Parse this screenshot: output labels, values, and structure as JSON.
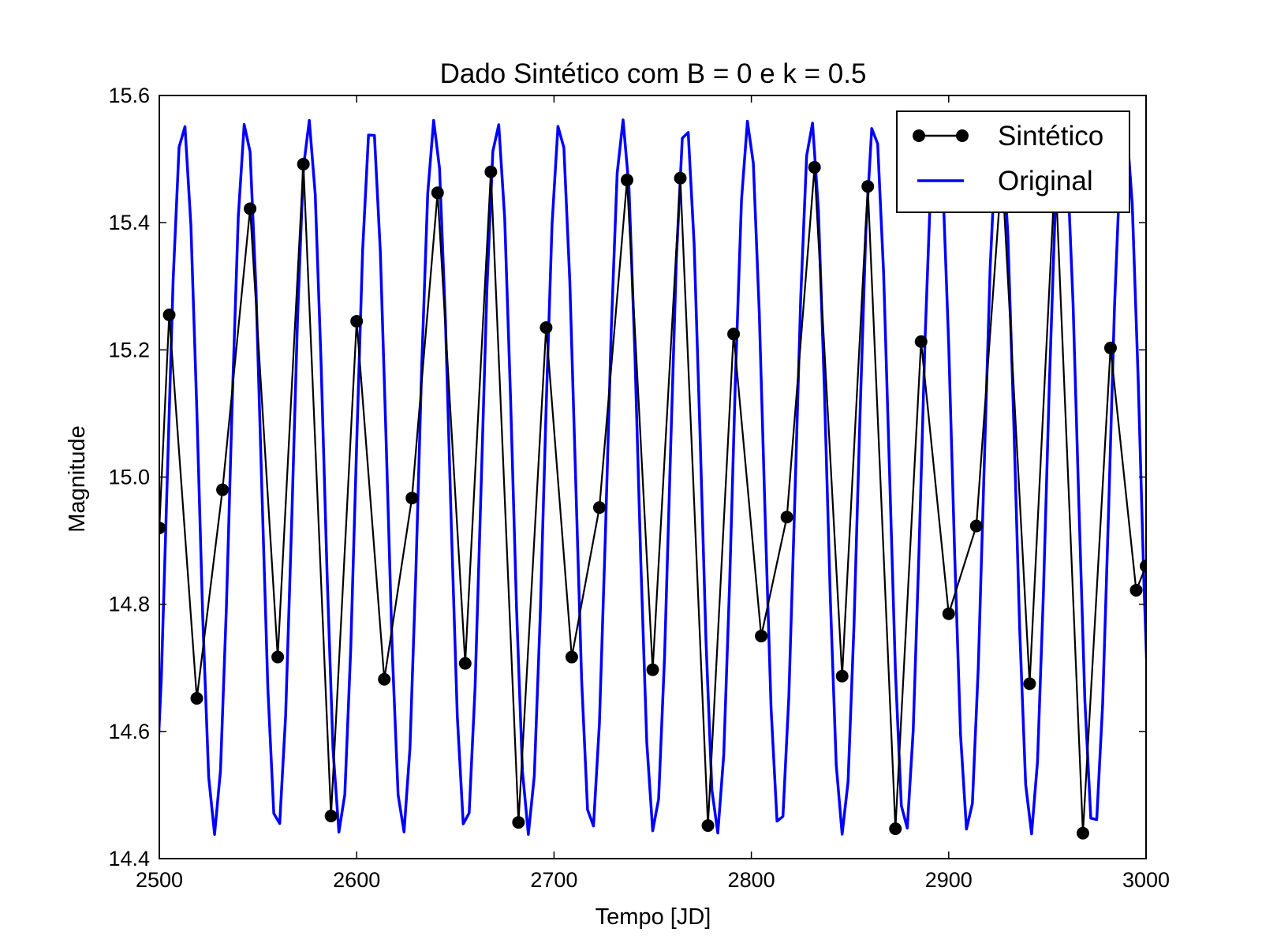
{
  "chart_data": {
    "type": "line",
    "title": "Dado Sintético com B = 0 e k = 0.5",
    "xlabel": "Tempo [JD]",
    "ylabel": "Magnitude",
    "xlim": [
      2500,
      3000
    ],
    "ylim": [
      14.4,
      15.6
    ],
    "xticks": [
      "2500",
      "2600",
      "2700",
      "2800",
      "2900",
      "3000"
    ],
    "yticks": [
      "14.4",
      "14.6",
      "14.8",
      "15.0",
      "15.2",
      "15.4",
      "15.6"
    ],
    "grid": false,
    "legend_position": "top-right",
    "series": [
      {
        "name": "Sintético",
        "style": "line-with-markers",
        "color": "#000000",
        "x": [
          2500,
          2505,
          2519,
          2532,
          2546,
          2560,
          2573,
          2587,
          2600,
          2614,
          2628,
          2641,
          2655,
          2668,
          2682,
          2696,
          2709,
          2723,
          2737,
          2750,
          2764,
          2778,
          2791,
          2805,
          2818,
          2832,
          2846,
          2859,
          2873,
          2886,
          2900,
          2914,
          2927,
          2941,
          2954,
          2968,
          2982,
          2995,
          3000
        ],
        "y": [
          14.92,
          15.255,
          14.652,
          14.98,
          15.422,
          14.717,
          15.492,
          14.467,
          15.245,
          14.682,
          14.967,
          15.447,
          14.707,
          15.48,
          14.457,
          15.235,
          14.717,
          14.952,
          15.467,
          14.697,
          15.47,
          14.452,
          15.225,
          14.75,
          14.937,
          15.487,
          14.687,
          15.457,
          14.447,
          15.213,
          14.785,
          14.923,
          15.485,
          14.675,
          15.485,
          14.44,
          15.203,
          14.822,
          14.86
        ]
      },
      {
        "name": "Original",
        "style": "line",
        "color": "#0000ff",
        "period": 31.83,
        "phase_of_first_peak": 2512,
        "mean": 15.0,
        "amplitude": 0.562
      }
    ]
  }
}
